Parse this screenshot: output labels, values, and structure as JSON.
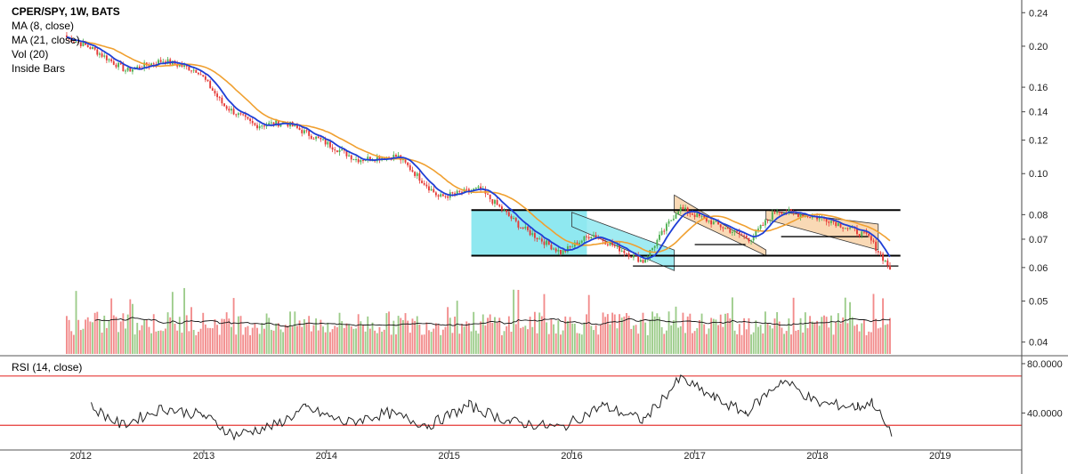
{
  "legend": {
    "title": "CPER/SPY, 1W, BATS",
    "ma_fast": "MA (8, close)",
    "ma_slow": "MA (21, close)",
    "volume": "Vol (20)",
    "inside_bars": "Inside Bars"
  },
  "rsi_panel": {
    "label": "RSI (14, close)"
  },
  "colors": {
    "up_candle": "#4caf50",
    "down_candle": "#e53935",
    "ma_fast": "#1f3fd6",
    "ma_slow": "#f0a030",
    "volume_up": "#9ccc8a",
    "volume_down": "#f28b8b",
    "range_box": "#8fe8f0",
    "wedge": "#f8d2a8",
    "rsi_line": "#222222",
    "rsi_levels": "#e53935"
  },
  "chart_data": [
    {
      "type": "candlestick",
      "title": "CPER/SPY, 1W, BATS",
      "x_axis": {
        "type": "date",
        "ticks": [
          "2012",
          "2013",
          "2014",
          "2015",
          "2016",
          "2017",
          "2018",
          "2019"
        ],
        "range": [
          "2011-06-01",
          "2019-09-01"
        ]
      },
      "y_axis": {
        "scale": "log",
        "side": "right",
        "ticks": [
          "0.24",
          "0.20",
          "0.16",
          "0.14",
          "0.12",
          "0.10",
          "0.08",
          "0.07",
          "0.06",
          "0.05",
          "0.04"
        ],
        "range": [
          0.0375,
          0.245
        ]
      },
      "price_path": [
        {
          "date": "2011-11-20",
          "close": 0.21
        },
        {
          "date": "2012-02-01",
          "close": 0.198
        },
        {
          "date": "2012-05-15",
          "close": 0.175
        },
        {
          "date": "2012-09-01",
          "close": 0.185
        },
        {
          "date": "2012-12-15",
          "close": 0.175
        },
        {
          "date": "2013-03-01",
          "close": 0.145
        },
        {
          "date": "2013-06-01",
          "close": 0.13
        },
        {
          "date": "2013-09-01",
          "close": 0.132
        },
        {
          "date": "2014-01-01",
          "close": 0.118
        },
        {
          "date": "2014-04-01",
          "close": 0.108
        },
        {
          "date": "2014-08-01",
          "close": 0.11
        },
        {
          "date": "2014-12-01",
          "close": 0.088
        },
        {
          "date": "2015-04-01",
          "close": 0.092
        },
        {
          "date": "2015-08-01",
          "close": 0.075
        },
        {
          "date": "2015-12-01",
          "close": 0.065
        },
        {
          "date": "2016-03-01",
          "close": 0.072
        },
        {
          "date": "2016-08-01",
          "close": 0.062
        },
        {
          "date": "2016-11-15",
          "close": 0.083
        },
        {
          "date": "2017-02-01",
          "close": 0.078
        },
        {
          "date": "2017-06-15",
          "close": 0.07
        },
        {
          "date": "2017-09-01",
          "close": 0.082
        },
        {
          "date": "2018-02-01",
          "close": 0.078
        },
        {
          "date": "2018-06-01",
          "close": 0.071
        },
        {
          "date": "2018-08-10",
          "close": 0.059
        }
      ],
      "annotations": {
        "range_box": {
          "from": "2014-11-01",
          "to": "2018-11-15",
          "high": 0.082,
          "low": 0.064
        },
        "horizontal_lines": [
          {
            "from": "2014-11-01",
            "to": "2018-11-15",
            "value": 0.082
          },
          {
            "from": "2014-11-01",
            "to": "2018-11-15",
            "value": 0.064
          },
          {
            "from": "2016-07-01",
            "to": "2018-11-15",
            "value": 0.0605
          },
          {
            "from": "2017-01-01",
            "to": "2017-06-01",
            "value": 0.068
          },
          {
            "from": "2017-09-15",
            "to": "2018-06-01",
            "value": 0.071
          }
        ],
        "wedges": [
          {
            "from": "2016-01-01",
            "to": "2016-11-01",
            "upper": [
              0.081,
              0.066
            ],
            "lower": [
              0.075,
              0.059
            ]
          },
          {
            "from": "2016-11-01",
            "to": "2017-08-01",
            "upper": [
              0.089,
              0.066
            ],
            "lower": [
              0.081,
              0.064
            ]
          },
          {
            "from": "2017-08-01",
            "to": "2018-07-01",
            "upper": [
              0.082,
              0.076
            ],
            "lower": [
              0.078,
              0.066
            ]
          }
        ]
      }
    },
    {
      "type": "bar",
      "series": [
        {
          "name": "Vol (20)",
          "description": "weekly volume bars with 20-period average line"
        }
      ]
    },
    {
      "type": "line",
      "title": "RSI (14, close)",
      "y_axis": {
        "ticks": [
          "80.0000",
          "40.0000"
        ],
        "levels": [
          70,
          30
        ]
      },
      "series": [
        {
          "name": "RSI (14, close)",
          "points": [
            {
              "date": "2012-02-01",
              "value": 45
            },
            {
              "date": "2012-05-01",
              "value": 30
            },
            {
              "date": "2012-09-01",
              "value": 44
            },
            {
              "date": "2013-01-01",
              "value": 38
            },
            {
              "date": "2013-04-01",
              "value": 22
            },
            {
              "date": "2013-08-01",
              "value": 30
            },
            {
              "date": "2013-11-01",
              "value": 44
            },
            {
              "date": "2014-03-01",
              "value": 32
            },
            {
              "date": "2014-07-01",
              "value": 40
            },
            {
              "date": "2014-11-01",
              "value": 30
            },
            {
              "date": "2015-03-01",
              "value": 46
            },
            {
              "date": "2015-07-01",
              "value": 33
            },
            {
              "date": "2015-12-01",
              "value": 28
            },
            {
              "date": "2016-04-01",
              "value": 46
            },
            {
              "date": "2016-08-01",
              "value": 34
            },
            {
              "date": "2016-11-20",
              "value": 68
            },
            {
              "date": "2017-03-01",
              "value": 52
            },
            {
              "date": "2017-06-01",
              "value": 40
            },
            {
              "date": "2017-09-20",
              "value": 67
            },
            {
              "date": "2018-01-01",
              "value": 48
            },
            {
              "date": "2018-05-01",
              "value": 45
            },
            {
              "date": "2018-06-15",
              "value": 49
            },
            {
              "date": "2018-08-10",
              "value": 21
            }
          ]
        }
      ]
    }
  ]
}
